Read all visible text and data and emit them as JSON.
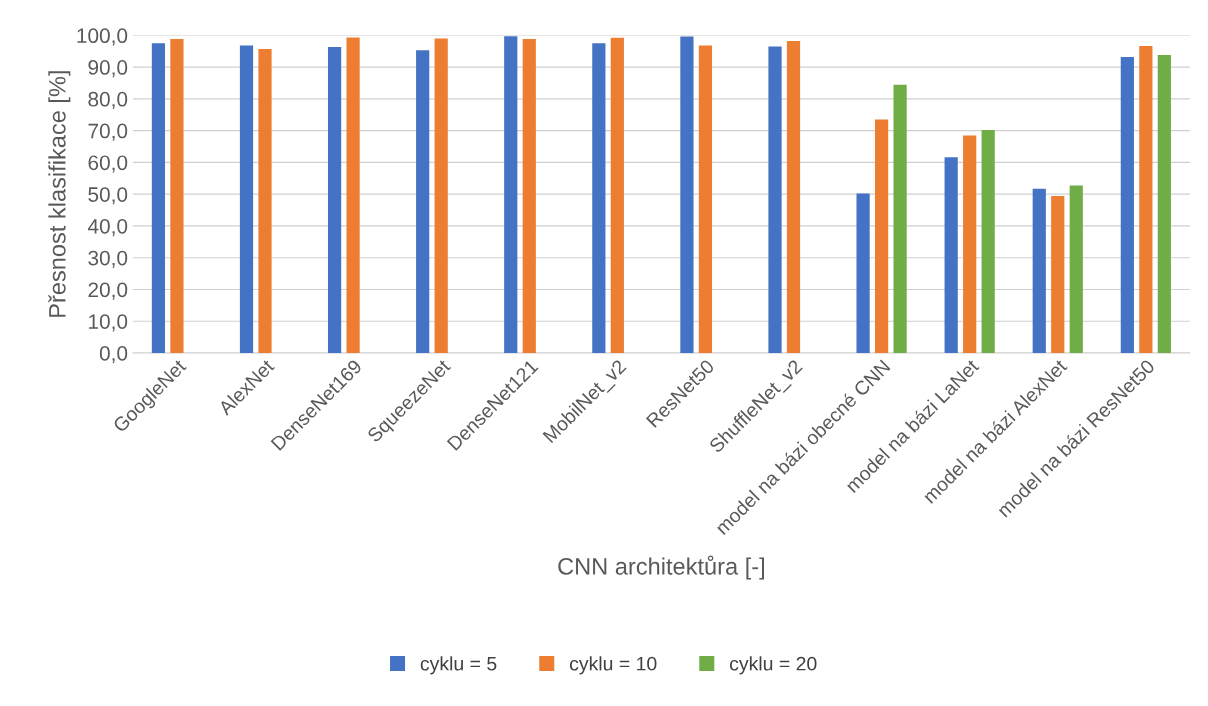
{
  "chart_data": {
    "type": "bar",
    "xlabel": "CNN architektůra [-]",
    "ylabel": "Přesnost klasifikace [%]",
    "categories": [
      "GoogleNet",
      "AlexNet",
      "DenseNet169",
      "SqueezeNet",
      "DenseNet121",
      "MobilNet_v2",
      "ResNet50",
      "ShuffleNet_v2",
      "model na bázi obecné CNN",
      "model na bázi LaNet",
      "model na bázi AlexNet",
      "model na bázi ResNet50"
    ],
    "series": [
      {
        "name": "cyklu = 5",
        "color": "#4472c4",
        "values": [
          97.5,
          96.8,
          96.3,
          95.3,
          99.7,
          97.5,
          99.6,
          96.5,
          50.2,
          61.6,
          51.7,
          93.2
        ]
      },
      {
        "name": "cyklu = 10",
        "color": "#ed7d31",
        "values": [
          98.8,
          95.7,
          99.3,
          99.0,
          98.8,
          99.2,
          96.8,
          98.2,
          73.5,
          68.5,
          49.4,
          96.6
        ]
      },
      {
        "name": "cyklu = 20",
        "color": "#70ad47",
        "values": [
          null,
          null,
          null,
          null,
          null,
          null,
          null,
          null,
          84.4,
          70.2,
          52.7,
          93.8
        ]
      }
    ],
    "ylim": [
      0,
      100
    ],
    "yticks": [
      {
        "value": 0,
        "label": "0,0"
      },
      {
        "value": 10,
        "label": "10,0"
      },
      {
        "value": 20,
        "label": "20,0"
      },
      {
        "value": 30,
        "label": "30,0"
      },
      {
        "value": 40,
        "label": "40,0"
      },
      {
        "value": 50,
        "label": "50,0"
      },
      {
        "value": 60,
        "label": "60,0"
      },
      {
        "value": 70,
        "label": "70,0"
      },
      {
        "value": 80,
        "label": "80,0"
      },
      {
        "value": 90,
        "label": "90,0"
      },
      {
        "value": 100,
        "label": "100,0"
      }
    ],
    "grid": "y",
    "legend": "bottom"
  }
}
